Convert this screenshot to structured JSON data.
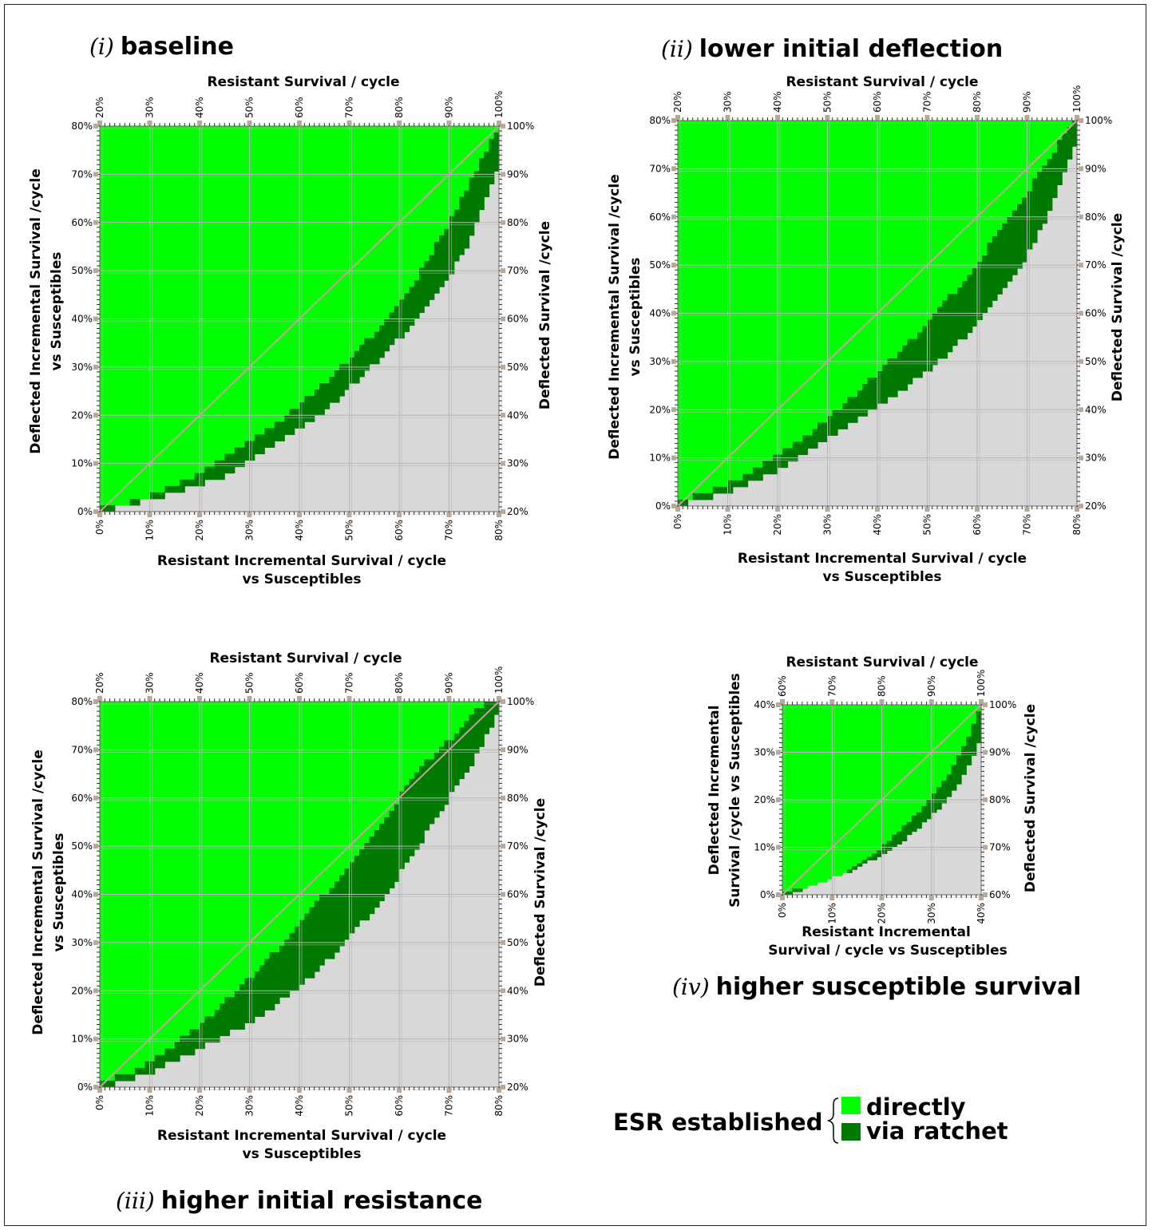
{
  "legend": {
    "prefix": "ESR established",
    "items": [
      {
        "label": "directly",
        "color": "#00ff00"
      },
      {
        "label": "via ratchet",
        "color": "#007a00"
      }
    ]
  },
  "colors": {
    "direct": "#00ff00",
    "ratchet": "#007a00",
    "fail": "#d8d8d8",
    "grid": "#b8b8b8",
    "diagonal": "#c8a0a0",
    "tick_marker": "#b8a898"
  },
  "chart_data": [
    {
      "id": "i",
      "type": "heatmap",
      "title_num": "(i)",
      "title": "baseline",
      "xlabel_top": "Resistant Survival / cycle",
      "xlabel_bottom": [
        "Resistant Incremental Survival / cycle",
        "vs Susceptibles"
      ],
      "ylabel_left": [
        "Deflected Incremental Survival /cycle",
        "vs Susceptibles"
      ],
      "ylabel_right": "Deflected Survival /cycle",
      "x_range": [
        0,
        80
      ],
      "y_range": [
        0,
        80
      ],
      "x_ticks": [
        "0%",
        "10%",
        "20%",
        "30%",
        "40%",
        "50%",
        "60%",
        "70%",
        "80%"
      ],
      "y_ticks": [
        "0%",
        "10%",
        "20%",
        "30%",
        "40%",
        "50%",
        "60%",
        "70%",
        "80%"
      ],
      "top_ticks": [
        "20%",
        "30%",
        "40%",
        "50%",
        "60%",
        "70%",
        "80%",
        "90%",
        "100%"
      ],
      "right_ticks": [
        "20%",
        "30%",
        "40%",
        "50%",
        "60%",
        "70%",
        "80%",
        "90%",
        "100%"
      ],
      "grid": true,
      "boundary_x": [
        0,
        5,
        10,
        15,
        20,
        25,
        30,
        35,
        40,
        45,
        50,
        55,
        60,
        65,
        70,
        75,
        78,
        80
      ],
      "boundary_lo": [
        0,
        1,
        2.5,
        4,
        5.5,
        7.5,
        10.5,
        14,
        17,
        21,
        25.5,
        30.5,
        36,
        42,
        49,
        58,
        66,
        72
      ],
      "boundary_hi": [
        1,
        1.5,
        3.5,
        5.5,
        8,
        11,
        14.5,
        18,
        22,
        26.5,
        31.5,
        37,
        43,
        51,
        60,
        70,
        76,
        80
      ]
    },
    {
      "id": "ii",
      "type": "heatmap",
      "title_num": "(ii)",
      "title": "lower initial deflection",
      "xlabel_top": "Resistant Survival / cycle",
      "xlabel_bottom": [
        "Resistant Incremental Survival / cycle",
        "vs Susceptibles"
      ],
      "ylabel_left": [
        "Deflected Incremental Survival /cycle",
        "vs Susceptibles"
      ],
      "ylabel_right": "Deflected Survival /cycle",
      "x_range": [
        0,
        80
      ],
      "y_range": [
        0,
        80
      ],
      "x_ticks": [
        "0%",
        "10%",
        "20%",
        "30%",
        "40%",
        "50%",
        "60%",
        "70%",
        "80%"
      ],
      "y_ticks": [
        "0%",
        "10%",
        "20%",
        "30%",
        "40%",
        "50%",
        "60%",
        "70%",
        "80%"
      ],
      "top_ticks": [
        "20%",
        "30%",
        "40%",
        "50%",
        "60%",
        "70%",
        "80%",
        "90%",
        "100%"
      ],
      "right_ticks": [
        "20%",
        "30%",
        "40%",
        "50%",
        "60%",
        "70%",
        "80%",
        "90%",
        "100%"
      ],
      "grid": true,
      "boundary_x": [
        0,
        5,
        10,
        15,
        20,
        25,
        30,
        35,
        40,
        45,
        50,
        55,
        60,
        65,
        70,
        75,
        78,
        80
      ],
      "boundary_lo": [
        0,
        1.5,
        3,
        5,
        7.5,
        10.5,
        14,
        17,
        20.5,
        24,
        28,
        32.5,
        38,
        44.5,
        52,
        62,
        70,
        76
      ],
      "boundary_hi": [
        1,
        2.5,
        4.5,
        7,
        10.5,
        14,
        18,
        22.5,
        27.5,
        32.5,
        38,
        44,
        50.5,
        57.5,
        65,
        73,
        78,
        80
      ]
    },
    {
      "id": "iii",
      "type": "heatmap",
      "title_num": "(iii)",
      "title": "higher initial resistance",
      "xlabel_top": "Resistant Survival / cycle",
      "xlabel_bottom": [
        "Resistant Incremental Survival / cycle",
        "vs Susceptibles"
      ],
      "ylabel_left": [
        "Deflected Incremental Survival /cycle",
        "vs Susceptibles"
      ],
      "ylabel_right": "Deflected Survival /cycle",
      "x_range": [
        0,
        80
      ],
      "y_range": [
        0,
        80
      ],
      "x_ticks": [
        "0%",
        "10%",
        "20%",
        "30%",
        "40%",
        "50%",
        "60%",
        "70%",
        "80%"
      ],
      "y_ticks": [
        "0%",
        "10%",
        "20%",
        "30%",
        "40%",
        "50%",
        "60%",
        "70%",
        "80%"
      ],
      "top_ticks": [
        "20%",
        "30%",
        "40%",
        "50%",
        "60%",
        "70%",
        "80%",
        "90%",
        "100%"
      ],
      "right_ticks": [
        "20%",
        "30%",
        "40%",
        "50%",
        "60%",
        "70%",
        "80%",
        "90%",
        "100%"
      ],
      "grid": true,
      "boundary_x": [
        0,
        5,
        10,
        15,
        20,
        25,
        30,
        35,
        40,
        45,
        50,
        55,
        60,
        65,
        70,
        75,
        78,
        80
      ],
      "boundary_lo": [
        0,
        1,
        3,
        5.5,
        8,
        10.5,
        13.5,
        17,
        20.5,
        25.5,
        31,
        37,
        44,
        52,
        60,
        68,
        74,
        78
      ],
      "boundary_hi": [
        1,
        2.5,
        5,
        9,
        13,
        17.5,
        22.5,
        28,
        34,
        40,
        46.5,
        53,
        60,
        67,
        72,
        78,
        80,
        80
      ]
    },
    {
      "id": "iv",
      "type": "heatmap",
      "title_num": "(iv)",
      "title": "higher susceptible survival",
      "xlabel_top": "Resistant Survival / cycle",
      "xlabel_bottom": [
        "Resistant Incremental",
        "Survival / cycle vs Susceptibles"
      ],
      "ylabel_left": [
        "Deflected Incremental",
        "Survival /cycle vs Susceptibles"
      ],
      "ylabel_right": "Deflected Survival /cycle",
      "x_range": [
        0,
        40
      ],
      "y_range": [
        0,
        40
      ],
      "x_ticks": [
        "0%",
        "10%",
        "20%",
        "30%",
        "40%"
      ],
      "y_ticks": [
        "0%",
        "10%",
        "20%",
        "30%",
        "40%"
      ],
      "top_ticks": [
        "60%",
        "70%",
        "80%",
        "90%",
        "100%"
      ],
      "right_ticks": [
        "60%",
        "70%",
        "80%",
        "90%",
        "100%"
      ],
      "grid": true,
      "boundary_x": [
        0,
        2.5,
        5,
        7.5,
        10,
        12.5,
        15,
        17.5,
        20,
        22.5,
        25,
        27.5,
        30,
        32.5,
        35,
        37.5,
        40
      ],
      "boundary_lo": [
        0,
        0.5,
        1.5,
        2.5,
        3.5,
        4.5,
        5.5,
        7,
        8.5,
        10,
        12,
        14,
        16.5,
        19,
        22.5,
        27,
        33
      ],
      "boundary_hi": [
        0.5,
        1,
        1.5,
        2,
        3,
        4.5,
        6,
        8,
        10,
        12.5,
        15,
        17.5,
        20.5,
        24,
        28,
        33,
        40
      ]
    }
  ]
}
